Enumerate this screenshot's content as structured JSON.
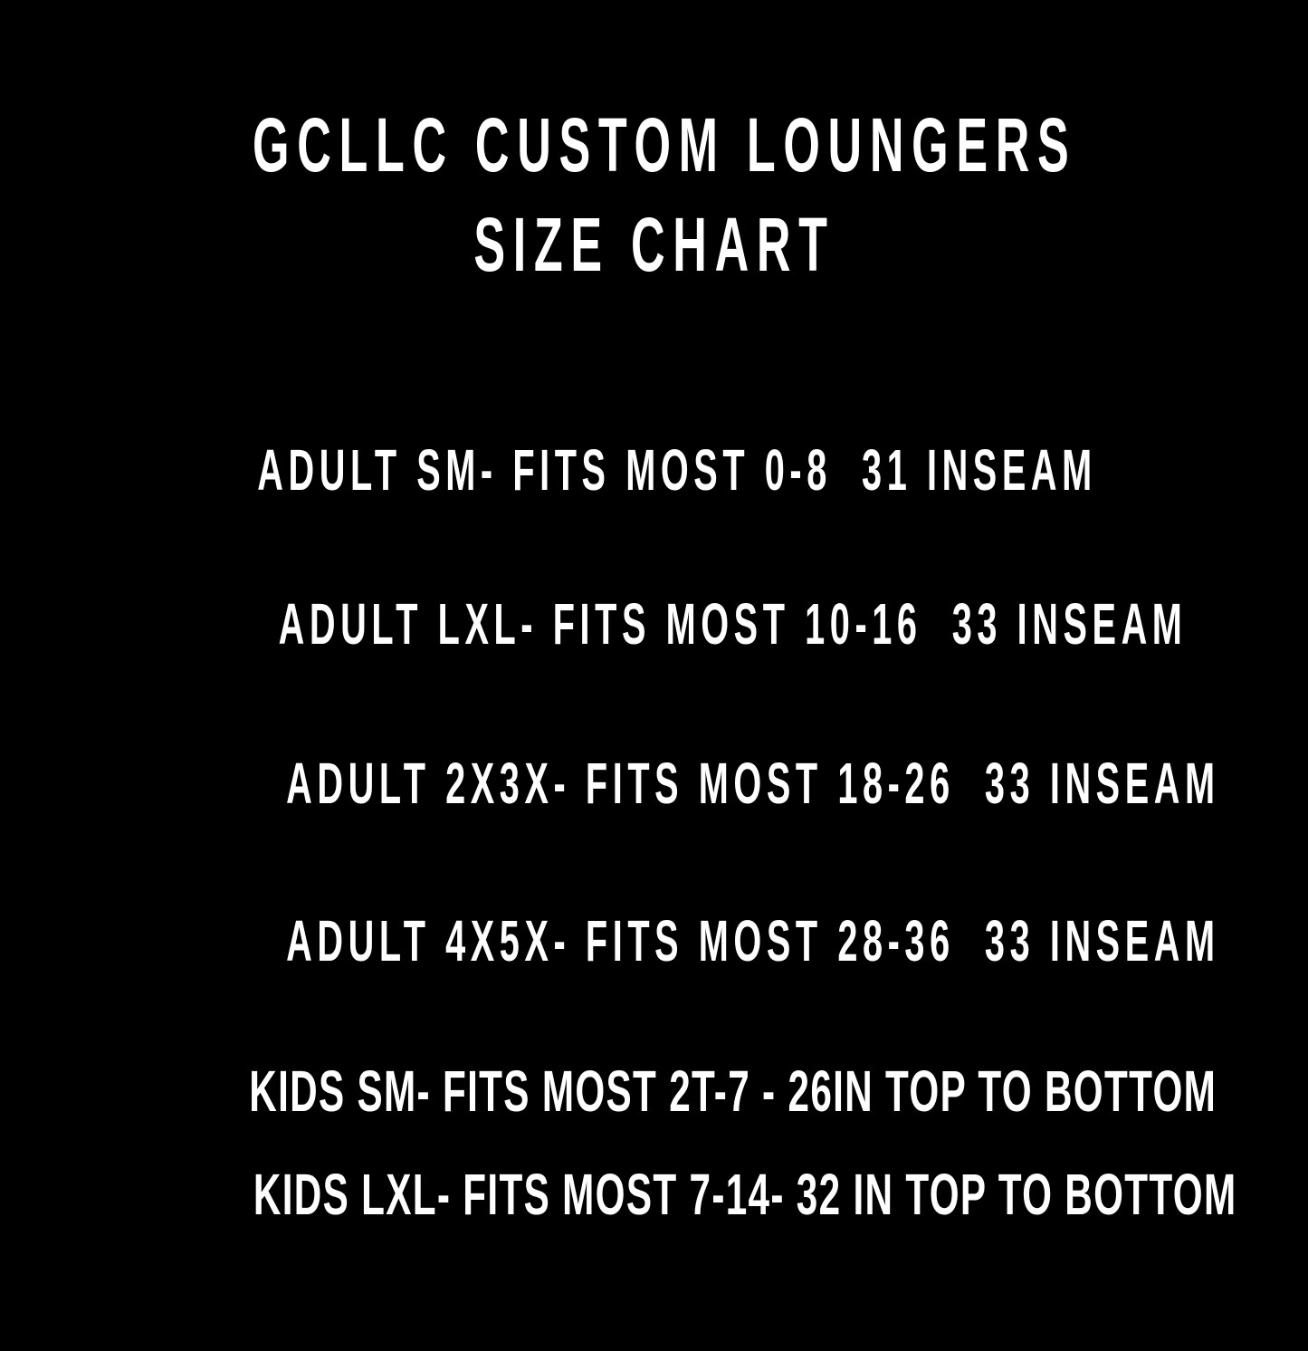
{
  "colors": {
    "background": "#000000",
    "text": "#ffffff"
  },
  "title": {
    "line1": "GCLLC CUSTOM LOUNGERS",
    "line2": "SIZE CHART"
  },
  "sizes": [
    "ADULT SM- FITS MOST 0-8  31 INSEAM",
    "ADULT LXL- FITS MOST 10-16  33 INSEAM",
    "ADULT 2X3X- FITS MOST 18-26  33 INSEAM",
    "ADULT 4X5X- FITS MOST 28-36  33 INSEAM",
    "KIDS SM- FITS MOST 2T-7 - 26IN TOP TO BOTTOM",
    "KIDS LXL- FITS MOST 7-14- 32 IN TOP TO BOTTOM"
  ]
}
